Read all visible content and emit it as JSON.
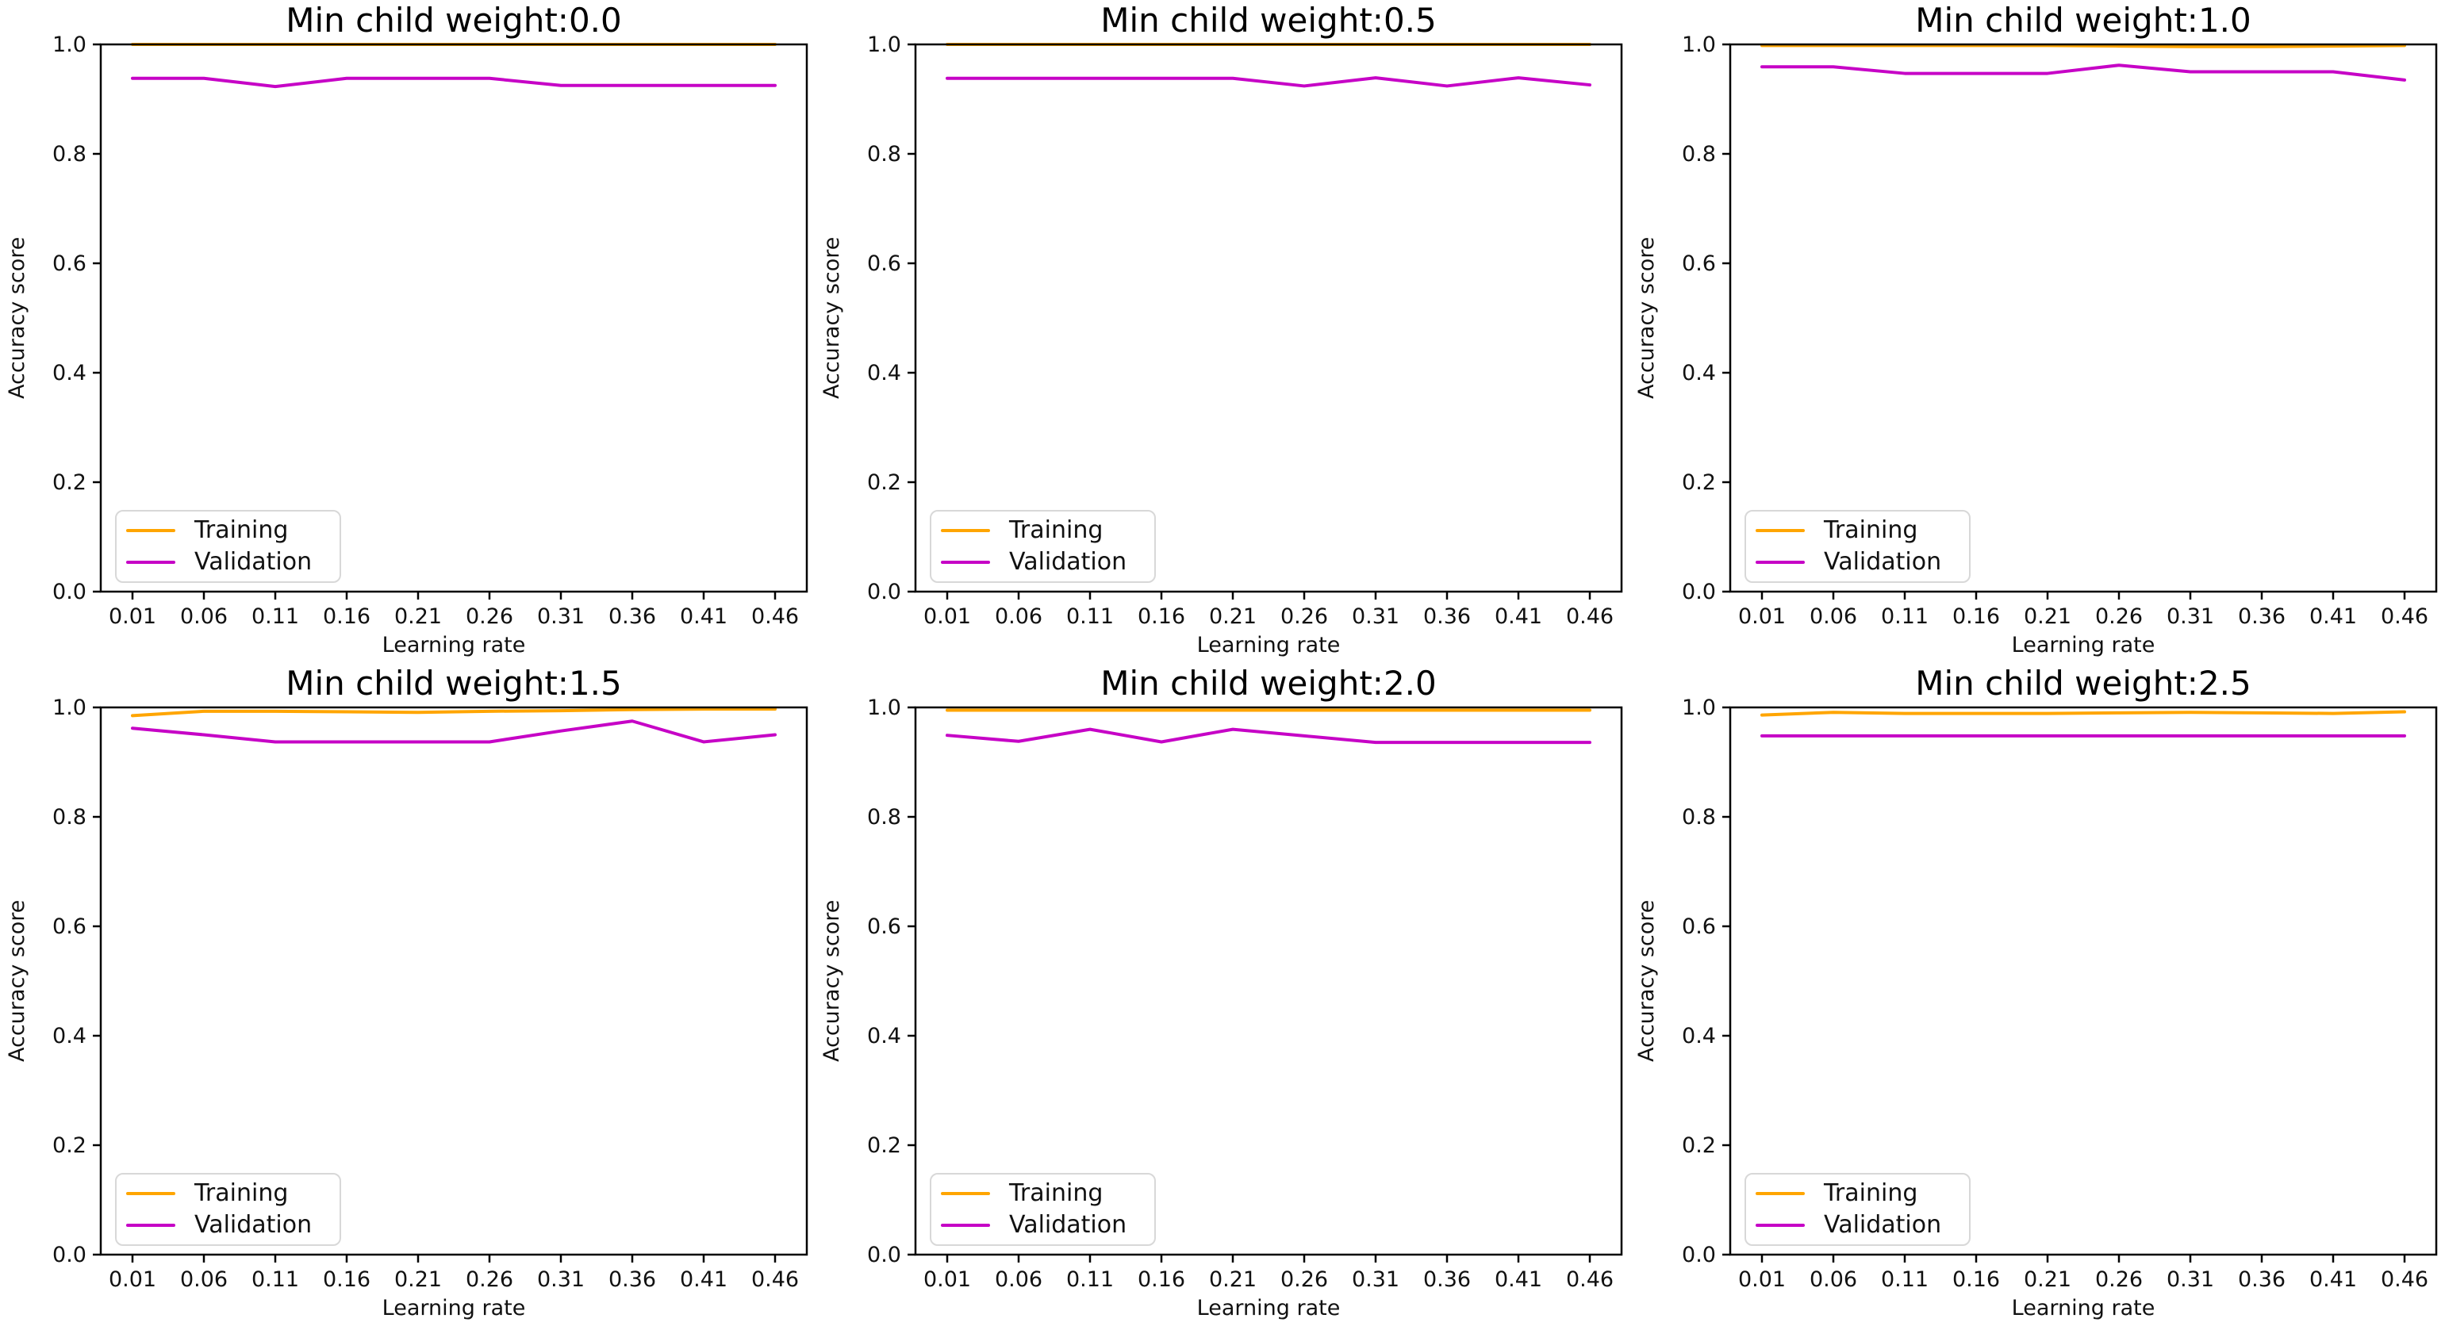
{
  "figure": {
    "rows": 2,
    "cols": 3,
    "background": "#ffffff"
  },
  "colors": {
    "training": "#FFA500",
    "validation": "#C603C6",
    "spine": "#000000",
    "text": "#111111",
    "legend_border": "#d8d8d8"
  },
  "chart_data": [
    {
      "type": "line",
      "title": "Min child weight:0.0",
      "xlabel": "Learning rate",
      "ylabel": "Accuracy score",
      "ylim": [
        0.0,
        1.0
      ],
      "x": [
        0.01,
        0.06,
        0.11,
        0.16,
        0.21,
        0.26,
        0.31,
        0.36,
        0.41,
        0.46
      ],
      "x_tick_labels": [
        "0.01",
        "0.06",
        "0.11",
        "0.16",
        "0.21",
        "0.26",
        "0.31",
        "0.36",
        "0.41",
        "0.46"
      ],
      "y_tick_labels": [
        "0.0",
        "0.2",
        "0.4",
        "0.6",
        "0.8",
        "1.0"
      ],
      "legend": [
        "Training",
        "Validation"
      ],
      "legend_position": "lower left",
      "series": [
        {
          "name": "Training",
          "color_key": "training",
          "values": [
            1.0,
            1.0,
            1.0,
            1.0,
            1.0,
            1.0,
            1.0,
            1.0,
            1.0,
            1.0
          ]
        },
        {
          "name": "Validation",
          "color_key": "validation",
          "values": [
            0.938,
            0.938,
            0.923,
            0.938,
            0.938,
            0.938,
            0.925,
            0.925,
            0.925,
            0.925
          ]
        }
      ]
    },
    {
      "type": "line",
      "title": "Min child weight:0.5",
      "xlabel": "Learning rate",
      "ylabel": "Accuracy score",
      "ylim": [
        0.0,
        1.0
      ],
      "x": [
        0.01,
        0.06,
        0.11,
        0.16,
        0.21,
        0.26,
        0.31,
        0.36,
        0.41,
        0.46
      ],
      "x_tick_labels": [
        "0.01",
        "0.06",
        "0.11",
        "0.16",
        "0.21",
        "0.26",
        "0.31",
        "0.36",
        "0.41",
        "0.46"
      ],
      "y_tick_labels": [
        "0.0",
        "0.2",
        "0.4",
        "0.6",
        "0.8",
        "1.0"
      ],
      "legend": [
        "Training",
        "Validation"
      ],
      "legend_position": "lower left",
      "series": [
        {
          "name": "Training",
          "color_key": "training",
          "values": [
            1.0,
            1.0,
            1.0,
            1.0,
            1.0,
            1.0,
            1.0,
            1.0,
            1.0,
            1.0
          ]
        },
        {
          "name": "Validation",
          "color_key": "validation",
          "values": [
            0.938,
            0.938,
            0.938,
            0.938,
            0.938,
            0.924,
            0.939,
            0.924,
            0.939,
            0.926
          ]
        }
      ]
    },
    {
      "type": "line",
      "title": "Min child weight:1.0",
      "xlabel": "Learning rate",
      "ylabel": "Accuracy score",
      "ylim": [
        0.0,
        1.0
      ],
      "x": [
        0.01,
        0.06,
        0.11,
        0.16,
        0.21,
        0.26,
        0.31,
        0.36,
        0.41,
        0.46
      ],
      "x_tick_labels": [
        "0.01",
        "0.06",
        "0.11",
        "0.16",
        "0.21",
        "0.26",
        "0.31",
        "0.36",
        "0.41",
        "0.46"
      ],
      "y_tick_labels": [
        "0.0",
        "0.2",
        "0.4",
        "0.6",
        "0.8",
        "1.0"
      ],
      "legend": [
        "Training",
        "Validation"
      ],
      "legend_position": "lower left",
      "series": [
        {
          "name": "Training",
          "color_key": "training",
          "values": [
            0.998,
            0.998,
            0.998,
            0.998,
            0.998,
            0.997,
            0.996,
            0.996,
            0.997,
            0.998
          ]
        },
        {
          "name": "Validation",
          "color_key": "validation",
          "values": [
            0.959,
            0.959,
            0.947,
            0.947,
            0.947,
            0.962,
            0.95,
            0.95,
            0.95,
            0.935
          ]
        }
      ]
    },
    {
      "type": "line",
      "title": "Min child weight:1.5",
      "xlabel": "Learning rate",
      "ylabel": "Accuracy score",
      "ylim": [
        0.0,
        1.0
      ],
      "x": [
        0.01,
        0.06,
        0.11,
        0.16,
        0.21,
        0.26,
        0.31,
        0.36,
        0.41,
        0.46
      ],
      "x_tick_labels": [
        "0.01",
        "0.06",
        "0.11",
        "0.16",
        "0.21",
        "0.26",
        "0.31",
        "0.36",
        "0.41",
        "0.46"
      ],
      "y_tick_labels": [
        "0.0",
        "0.2",
        "0.4",
        "0.6",
        "0.8",
        "1.0"
      ],
      "legend": [
        "Training",
        "Validation"
      ],
      "legend_position": "lower left",
      "series": [
        {
          "name": "Training",
          "color_key": "training",
          "values": [
            0.985,
            0.993,
            0.993,
            0.992,
            0.991,
            0.993,
            0.994,
            0.996,
            0.997,
            0.997
          ]
        },
        {
          "name": "Validation",
          "color_key": "validation",
          "values": [
            0.962,
            0.95,
            0.937,
            0.937,
            0.937,
            0.937,
            0.957,
            0.975,
            0.937,
            0.95
          ]
        }
      ]
    },
    {
      "type": "line",
      "title": "Min child weight:2.0",
      "xlabel": "Learning rate",
      "ylabel": "Accuracy score",
      "ylim": [
        0.0,
        1.0
      ],
      "x": [
        0.01,
        0.06,
        0.11,
        0.16,
        0.21,
        0.26,
        0.31,
        0.36,
        0.41,
        0.46
      ],
      "x_tick_labels": [
        "0.01",
        "0.06",
        "0.11",
        "0.16",
        "0.21",
        "0.26",
        "0.31",
        "0.36",
        "0.41",
        "0.46"
      ],
      "y_tick_labels": [
        "0.0",
        "0.2",
        "0.4",
        "0.6",
        "0.8",
        "1.0"
      ],
      "legend": [
        "Training",
        "Validation"
      ],
      "legend_position": "lower left",
      "series": [
        {
          "name": "Training",
          "color_key": "training",
          "values": [
            0.995,
            0.995,
            0.995,
            0.995,
            0.995,
            0.995,
            0.995,
            0.995,
            0.995,
            0.995
          ]
        },
        {
          "name": "Validation",
          "color_key": "validation",
          "values": [
            0.949,
            0.938,
            0.96,
            0.937,
            0.96,
            0.948,
            0.936,
            0.936,
            0.936,
            0.936
          ]
        }
      ]
    },
    {
      "type": "line",
      "title": "Min child weight:2.5",
      "xlabel": "Learning rate",
      "ylabel": "Accuracy score",
      "ylim": [
        0.0,
        1.0
      ],
      "x": [
        0.01,
        0.06,
        0.11,
        0.16,
        0.21,
        0.26,
        0.31,
        0.36,
        0.41,
        0.46
      ],
      "x_tick_labels": [
        "0.01",
        "0.06",
        "0.11",
        "0.16",
        "0.21",
        "0.26",
        "0.31",
        "0.36",
        "0.41",
        "0.46"
      ],
      "y_tick_labels": [
        "0.0",
        "0.2",
        "0.4",
        "0.6",
        "0.8",
        "1.0"
      ],
      "legend": [
        "Training",
        "Validation"
      ],
      "legend_position": "lower left",
      "series": [
        {
          "name": "Training",
          "color_key": "training",
          "values": [
            0.986,
            0.991,
            0.989,
            0.989,
            0.989,
            0.99,
            0.991,
            0.99,
            0.989,
            0.992
          ]
        },
        {
          "name": "Validation",
          "color_key": "validation",
          "values": [
            0.948,
            0.948,
            0.948,
            0.948,
            0.948,
            0.948,
            0.948,
            0.948,
            0.948,
            0.948
          ]
        }
      ]
    }
  ]
}
